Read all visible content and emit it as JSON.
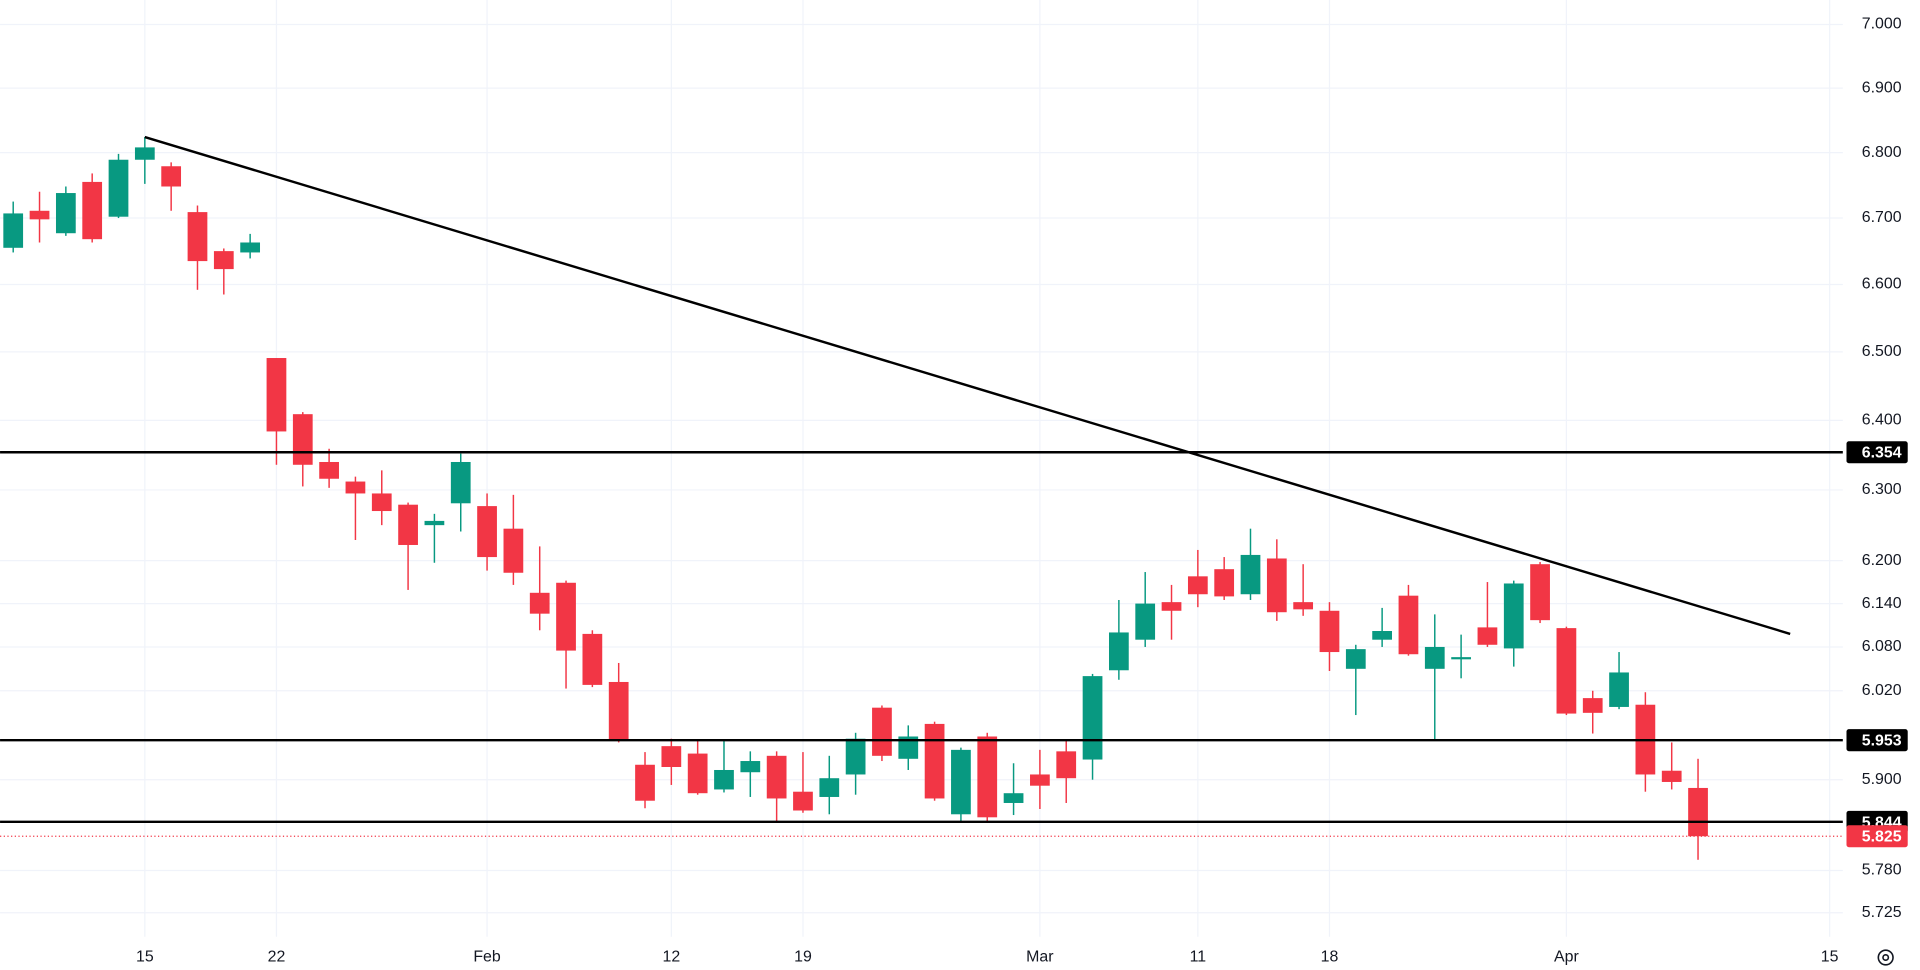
{
  "chart_data": {
    "type": "candlestick",
    "categories": [
      null,
      null,
      null,
      null,
      null,
      "15",
      null,
      null,
      null,
      null,
      "22",
      null,
      null,
      null,
      null,
      null,
      null,
      null,
      "Feb",
      null,
      null,
      null,
      null,
      null,
      null,
      "12",
      null,
      null,
      null,
      null,
      "19",
      null,
      null,
      null,
      null,
      null,
      null,
      null,
      null,
      "Mar",
      null,
      null,
      null,
      null,
      null,
      "11",
      null,
      null,
      null,
      null,
      "18",
      null,
      null,
      null,
      null,
      null,
      null,
      null,
      null,
      "Apr",
      null,
      null,
      null,
      null,
      null,
      null,
      null,
      null,
      null,
      "15"
    ],
    "open": [
      6.655,
      6.711,
      6.677,
      6.755,
      6.702,
      6.789,
      6.779,
      6.709,
      6.65,
      6.648,
      6.491,
      6.409,
      6.34,
      6.312,
      6.295,
      6.279,
      6.25,
      6.281,
      6.277,
      6.245,
      6.155,
      6.169,
      6.098,
      6.032,
      5.92,
      5.945,
      5.935,
      5.887,
      5.91,
      5.932,
      5.884,
      5.877,
      5.907,
      5.997,
      5.928,
      5.975,
      5.854,
      5.958,
      5.869,
      5.907,
      5.938,
      5.927,
      6.048,
      6.09,
      6.142,
      6.178,
      6.188,
      6.153,
      6.203,
      6.142,
      6.13,
      6.05,
      6.09,
      6.151,
      6.05,
      6.063,
      6.107,
      6.078,
      6.195,
      6.106,
      6.01,
      5.998,
      6.001,
      5.912,
      5.889,
      null,
      null,
      null,
      null,
      null
    ],
    "high": [
      6.725,
      6.74,
      6.748,
      6.768,
      6.798,
      6.824,
      6.785,
      6.719,
      6.654,
      6.676,
      6.491,
      6.412,
      6.359,
      6.319,
      6.328,
      6.282,
      6.266,
      6.352,
      6.295,
      6.293,
      6.22,
      6.172,
      6.103,
      6.058,
      5.937,
      5.955,
      5.952,
      5.952,
      5.938,
      5.938,
      5.937,
      5.932,
      5.963,
      6.0,
      5.973,
      5.978,
      5.943,
      5.963,
      5.922,
      5.94,
      5.953,
      6.043,
      6.145,
      6.184,
      6.166,
      6.215,
      6.205,
      6.245,
      6.23,
      6.195,
      6.142,
      6.083,
      6.134,
      6.166,
      6.125,
      6.097,
      6.17,
      6.172,
      6.198,
      6.108,
      6.02,
      6.073,
      6.018,
      5.95,
      5.928,
      null,
      null,
      null,
      null,
      null
    ],
    "low": [
      6.648,
      6.663,
      6.673,
      6.663,
      6.7,
      6.752,
      6.711,
      6.592,
      6.585,
      6.639,
      6.336,
      6.305,
      6.303,
      6.229,
      6.25,
      6.159,
      6.197,
      6.241,
      6.186,
      6.166,
      6.103,
      6.023,
      6.025,
      5.95,
      5.862,
      5.893,
      5.88,
      5.883,
      5.877,
      5.845,
      5.856,
      5.854,
      5.88,
      5.925,
      5.913,
      5.872,
      5.845,
      5.845,
      5.853,
      5.861,
      5.869,
      5.9,
      6.035,
      6.08,
      6.09,
      6.135,
      6.145,
      6.145,
      6.116,
      6.123,
      6.047,
      5.987,
      6.08,
      6.068,
      5.953,
      6.037,
      6.08,
      6.053,
      6.113,
      5.987,
      5.962,
      5.995,
      5.884,
      5.887,
      5.794,
      null,
      null,
      null,
      null,
      null
    ],
    "close": [
      6.707,
      6.698,
      6.738,
      6.668,
      6.789,
      6.808,
      6.748,
      6.635,
      6.623,
      6.663,
      6.384,
      6.336,
      6.316,
      6.295,
      6.27,
      6.222,
      6.256,
      6.34,
      6.205,
      6.183,
      6.126,
      6.075,
      6.028,
      5.953,
      5.872,
      5.917,
      5.882,
      5.913,
      5.925,
      5.875,
      5.859,
      5.902,
      5.955,
      5.932,
      5.958,
      5.875,
      5.94,
      5.85,
      5.882,
      5.892,
      5.902,
      6.04,
      6.1,
      6.14,
      6.13,
      6.153,
      6.15,
      6.208,
      6.128,
      6.132,
      6.073,
      6.077,
      6.102,
      6.07,
      6.08,
      6.066,
      6.083,
      6.168,
      6.117,
      5.989,
      5.99,
      6.045,
      5.907,
      5.897,
      5.825,
      null,
      null,
      null,
      null,
      null
    ],
    "up_color": "#089981",
    "down_color": "#f23645",
    "ylim": [
      5.694,
      7.039
    ],
    "log_scale": true,
    "yticks": [
      {
        "value": 7.0,
        "label": "7.000"
      },
      {
        "value": 6.9,
        "label": "6.900"
      },
      {
        "value": 6.8,
        "label": "6.800"
      },
      {
        "value": 6.7,
        "label": "6.700"
      },
      {
        "value": 6.6,
        "label": "6.600"
      },
      {
        "value": 6.5,
        "label": "6.500"
      },
      {
        "value": 6.4,
        "label": "6.400"
      },
      {
        "value": 6.3,
        "label": "6.300"
      },
      {
        "value": 6.2,
        "label": "6.200"
      },
      {
        "value": 6.14,
        "label": "6.140"
      },
      {
        "value": 6.08,
        "label": "6.080"
      },
      {
        "value": 6.02,
        "label": "6.020"
      },
      {
        "value": 5.9,
        "label": "5.900"
      },
      {
        "value": 5.78,
        "label": "5.780"
      },
      {
        "value": 5.725,
        "label": "5.725"
      }
    ],
    "grid": true,
    "levels": [
      6.354,
      5.953,
      5.844
    ],
    "level_color": "#000000",
    "last_price": 5.825,
    "lines": [
      {
        "x": [
          5,
          67.5
        ],
        "y": [
          6.824,
          6.098
        ],
        "color": "#000000"
      }
    ]
  }
}
